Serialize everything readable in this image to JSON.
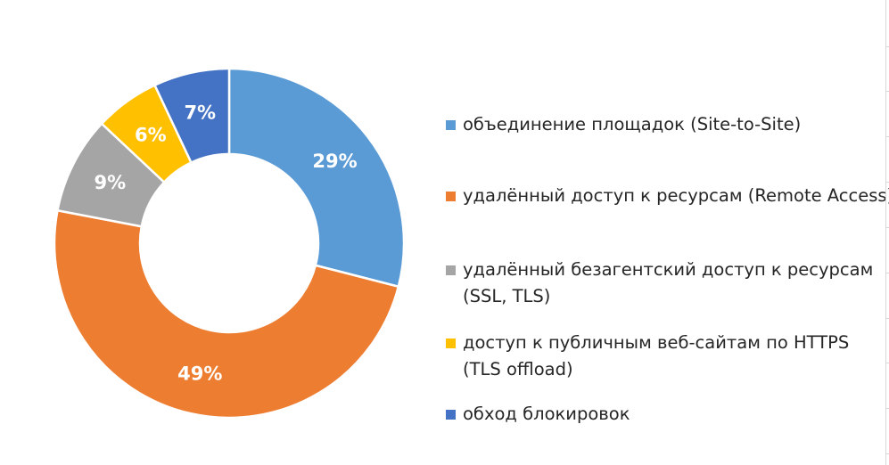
{
  "chart_data": {
    "type": "pie",
    "variant": "donut",
    "legend_position": "right",
    "slices": [
      {
        "label": "объединение площадок (Site-to-Site)",
        "value": 29,
        "value_label": "29%",
        "color": "#5B9BD5"
      },
      {
        "label": "удалённый доступ к ресурсам (Remote Access)",
        "value": 49,
        "value_label": "49%",
        "color": "#ED7D31"
      },
      {
        "label": "удалённый безагентский доступ к ресурсам (SSL, TLS)",
        "value": 9,
        "value_label": "9%",
        "color": "#A5A5A5"
      },
      {
        "label": "доступ к публичным веб-сайтам по HTTPS (TLS offload)",
        "value": 6,
        "value_label": "6%",
        "color": "#FFC000"
      },
      {
        "label": "обход блокировок",
        "value": 7,
        "value_label": "7%",
        "color": "#4472C4"
      }
    ]
  },
  "legend": {
    "items": [
      {
        "lines": [
          "объединение площадок (Site-to-Site)"
        ],
        "color": "#5B9BD5"
      },
      {
        "lines": [
          "удалённый доступ к ресурсам (Remote Access)"
        ],
        "color": "#ED7D31"
      },
      {
        "lines": [
          "удалённый безагентский доступ к ресурсам",
          "(SSL, TLS)"
        ],
        "color": "#A5A5A5"
      },
      {
        "lines": [
          "доступ к публичным веб-сайтам по HTTPS",
          "(TLS offload)"
        ],
        "color": "#FFC000"
      },
      {
        "lines": [
          "обход блокировок"
        ],
        "color": "#4472C4"
      }
    ]
  }
}
